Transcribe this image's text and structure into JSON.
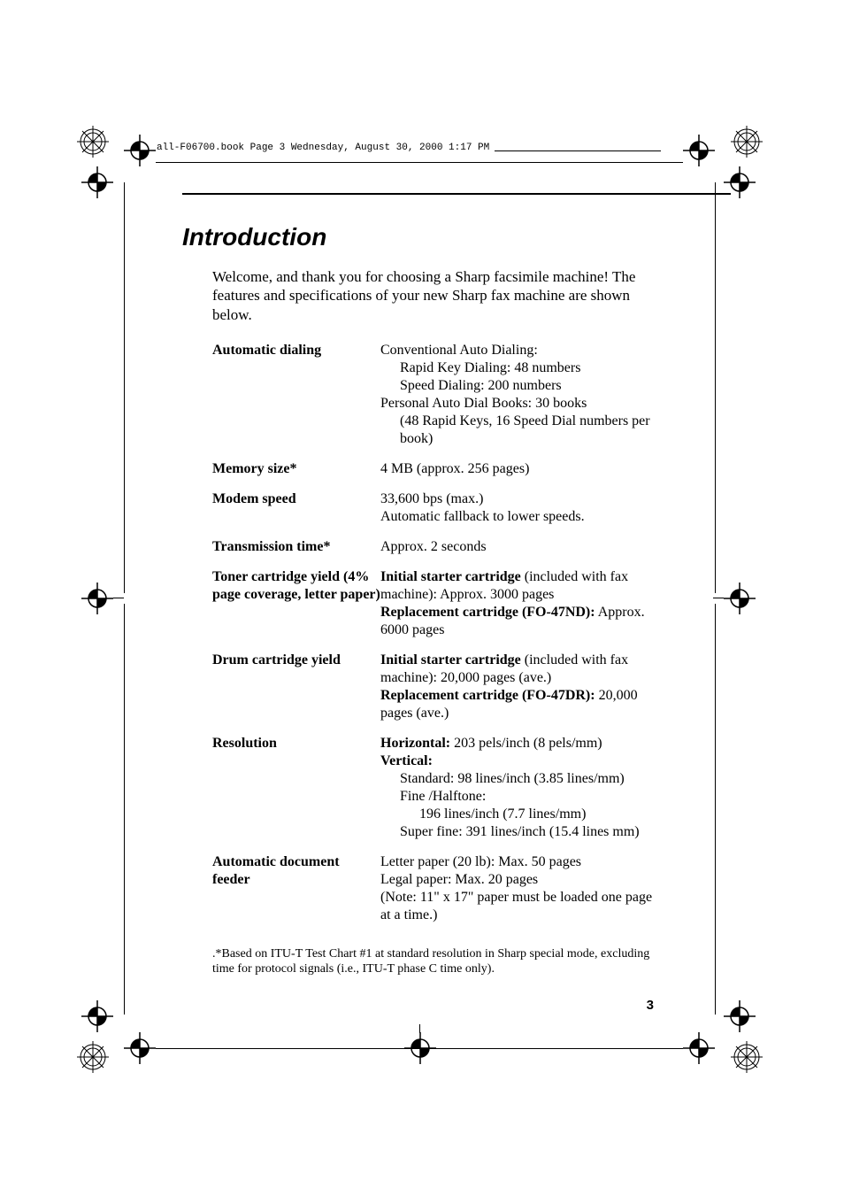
{
  "header_running": "all-F06700.book  Page 3  Wednesday, August 30, 2000  1:17 PM",
  "title": "Introduction",
  "intro": "Welcome, and thank you for choosing a Sharp facsimile machine! The features and specifications of your new Sharp fax machine are shown below.",
  "specs": [
    {
      "label": "Automatic dialing",
      "value_lines": [
        {
          "text": "Conventional Auto Dialing:",
          "indent": 0
        },
        {
          "text": "Rapid Key Dialing: 48 numbers",
          "indent": 1
        },
        {
          "text": "Speed Dialing: 200 numbers",
          "indent": 1
        },
        {
          "text": "Personal Auto Dial Books: 30 books",
          "indent": 0
        },
        {
          "text": "(48 Rapid Keys, 16 Speed Dial numbers per book)",
          "indent": 1
        }
      ]
    },
    {
      "label": "Memory size*",
      "value_lines": [
        {
          "text": "4 MB (approx. 256 pages)",
          "indent": 0
        }
      ]
    },
    {
      "label": "Modem speed",
      "value_lines": [
        {
          "text": "33,600 bps (max.)",
          "indent": 0
        },
        {
          "text": "Automatic fallback to lower speeds.",
          "indent": 0
        }
      ]
    },
    {
      "label": "Transmission time*",
      "value_lines": [
        {
          "text": "Approx. 2 seconds",
          "indent": 0
        }
      ]
    },
    {
      "label": "Toner cartridge yield (4% page coverage, letter paper)",
      "value_lines": [
        {
          "bold_prefix": "Initial starter cartridge",
          "text": " (included with fax machine): Approx. 3000 pages",
          "indent": 0
        },
        {
          "bold_prefix": "Replacement cartridge (FO-47ND):",
          "text": " Approx. 6000 pages",
          "indent": 0
        }
      ]
    },
    {
      "label": "Drum cartridge yield",
      "value_lines": [
        {
          "bold_prefix": "Initial starter cartridge",
          "text": " (included with fax machine): 20,000 pages (ave.)",
          "indent": 0
        },
        {
          "bold_prefix": "Replacement cartridge (FO-47DR):",
          "text": " 20,000 pages (ave.)",
          "indent": 0
        }
      ]
    },
    {
      "label": "Resolution",
      "value_lines": [
        {
          "bold_prefix": "Horizontal:",
          "text": " 203 pels/inch (8 pels/mm)",
          "indent": 0
        },
        {
          "bold_prefix": "Vertical:",
          "text": "",
          "indent": 0
        },
        {
          "text": "Standard: 98 lines/inch (3.85 lines/mm)",
          "indent": 1
        },
        {
          "text": "Fine /Halftone:",
          "indent": 1
        },
        {
          "text": "196 lines/inch (7.7 lines/mm)",
          "indent": 2
        },
        {
          "text": "Super fine: 391 lines/inch (15.4 lines mm)",
          "indent": 1
        }
      ]
    },
    {
      "label": "Automatic document feeder",
      "value_lines": [
        {
          "text": "Letter paper (20 lb): Max. 50 pages",
          "indent": 0
        },
        {
          "text": "Legal paper: Max. 20 pages",
          "indent": 0
        },
        {
          "text": "(Note: 11\" x 17\" paper must be loaded one page at a time.)",
          "indent": 0
        }
      ]
    }
  ],
  "footnote": ".*Based on ITU-T Test Chart #1 at standard resolution in Sharp special mode, excluding time for protocol signals (i.e., ITU-T phase C time only).",
  "page_number": "3",
  "colors": {
    "text": "#000000",
    "background": "#ffffff"
  },
  "crop_marks": {
    "stroke": "#000000",
    "stroke_width": 1,
    "rosette_radius": 14
  }
}
